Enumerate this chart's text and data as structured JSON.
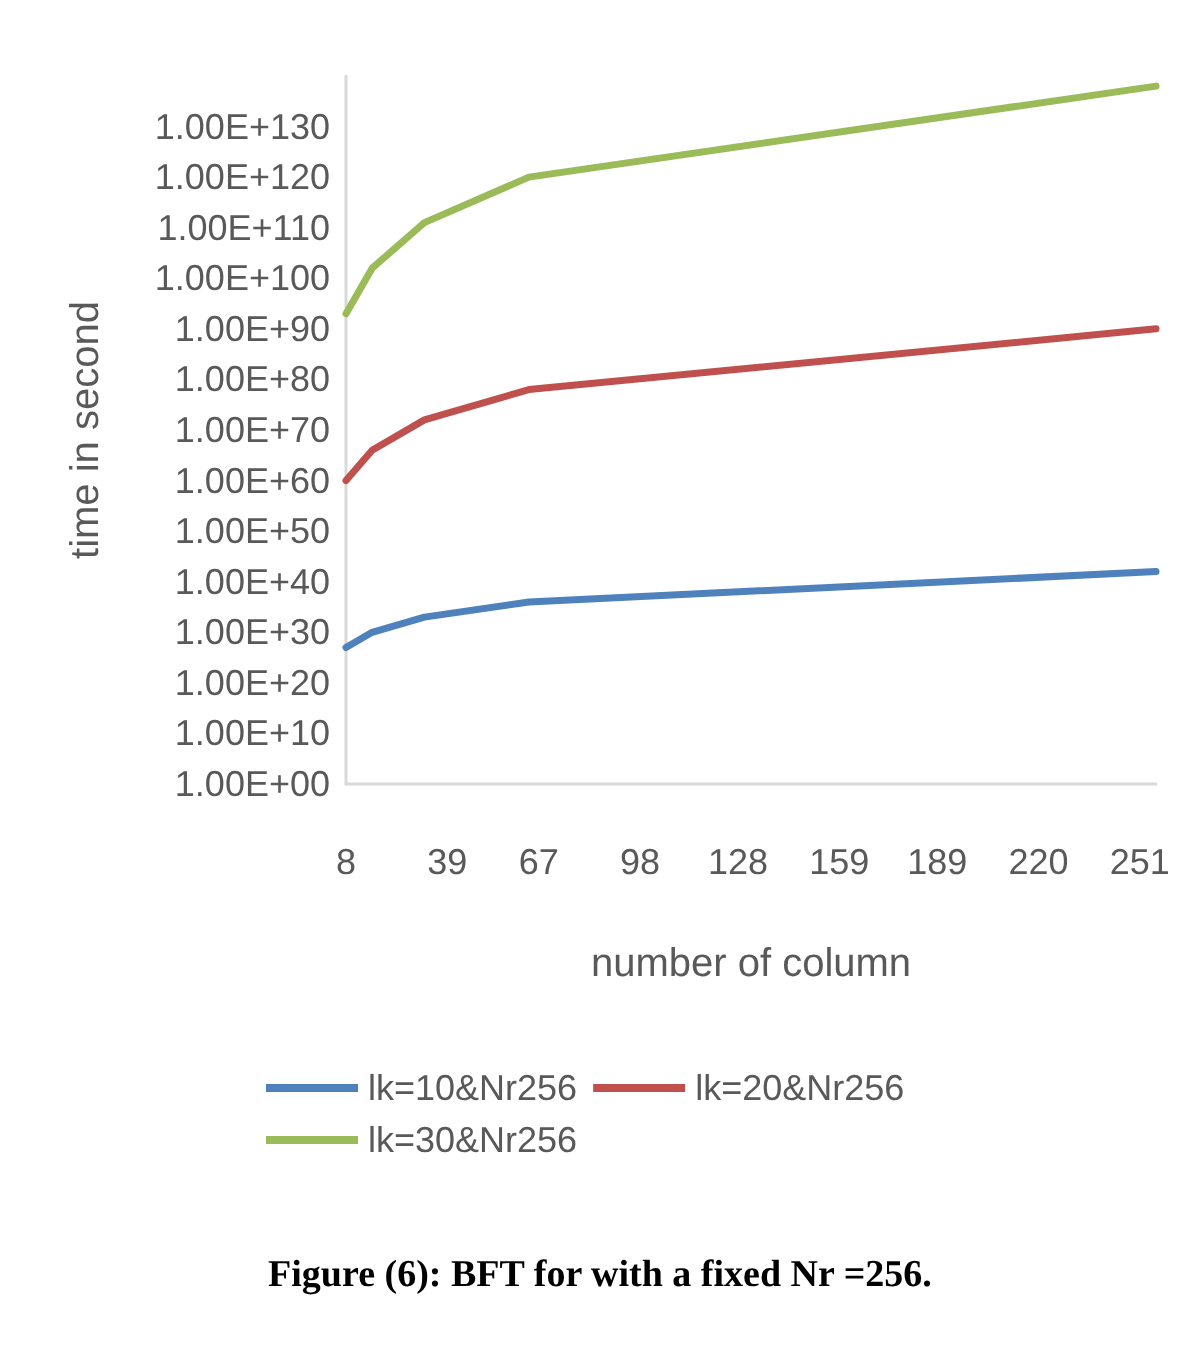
{
  "chart_data": {
    "type": "line",
    "xlabel": "number of column",
    "ylabel": "time in second",
    "x": [
      8,
      16,
      32,
      64,
      256
    ],
    "series": [
      {
        "name": "lk=10&Nr256",
        "color": "#4f81bd",
        "values": [
          1e+27,
          1e+30,
          1e+33,
          1e+36,
          1e+42
        ]
      },
      {
        "name": "lk=20&Nr256",
        "color": "#c0504d",
        "values": [
          1e+60,
          1e+66,
          1e+72,
          1e+78,
          1e+90
        ]
      },
      {
        "name": "lk=30&Nr256",
        "color": "#9bbb59",
        "values": [
          1e+93,
          1e+102,
          1e+111,
          1e+120,
          1e+138
        ]
      }
    ],
    "log": true,
    "ylim": [
      1,
      1e+140
    ],
    "yticks": [
      {
        "value": 1,
        "label": "1.00E+00"
      },
      {
        "value": 10000000000.0,
        "label": "1.00E+10"
      },
      {
        "value": 1e+20,
        "label": "1.00E+20"
      },
      {
        "value": 1e+30,
        "label": "1.00E+30"
      },
      {
        "value": 1e+40,
        "label": "1.00E+40"
      },
      {
        "value": 1e+50,
        "label": "1.00E+50"
      },
      {
        "value": 1e+60,
        "label": "1.00E+60"
      },
      {
        "value": 1e+70,
        "label": "1.00E+70"
      },
      {
        "value": 1e+80,
        "label": "1.00E+80"
      },
      {
        "value": 1e+90,
        "label": "1.00E+90"
      },
      {
        "value": 1e+100,
        "label": "1.00E+100"
      },
      {
        "value": 1e+110,
        "label": "1.00E+110"
      },
      {
        "value": 1e+120,
        "label": "1.00E+120"
      },
      {
        "value": 1e+130,
        "label": "1.00E+130"
      }
    ],
    "xlim": [
      8,
      256
    ],
    "xticks": [
      8,
      39,
      67,
      98,
      128,
      159,
      189,
      220,
      251
    ],
    "grid": false,
    "legend": "bottom",
    "marker": "none",
    "line_style": "solid",
    "annotations": [
      "Figure (6): BFT for with a fixed Nr =256."
    ]
  }
}
